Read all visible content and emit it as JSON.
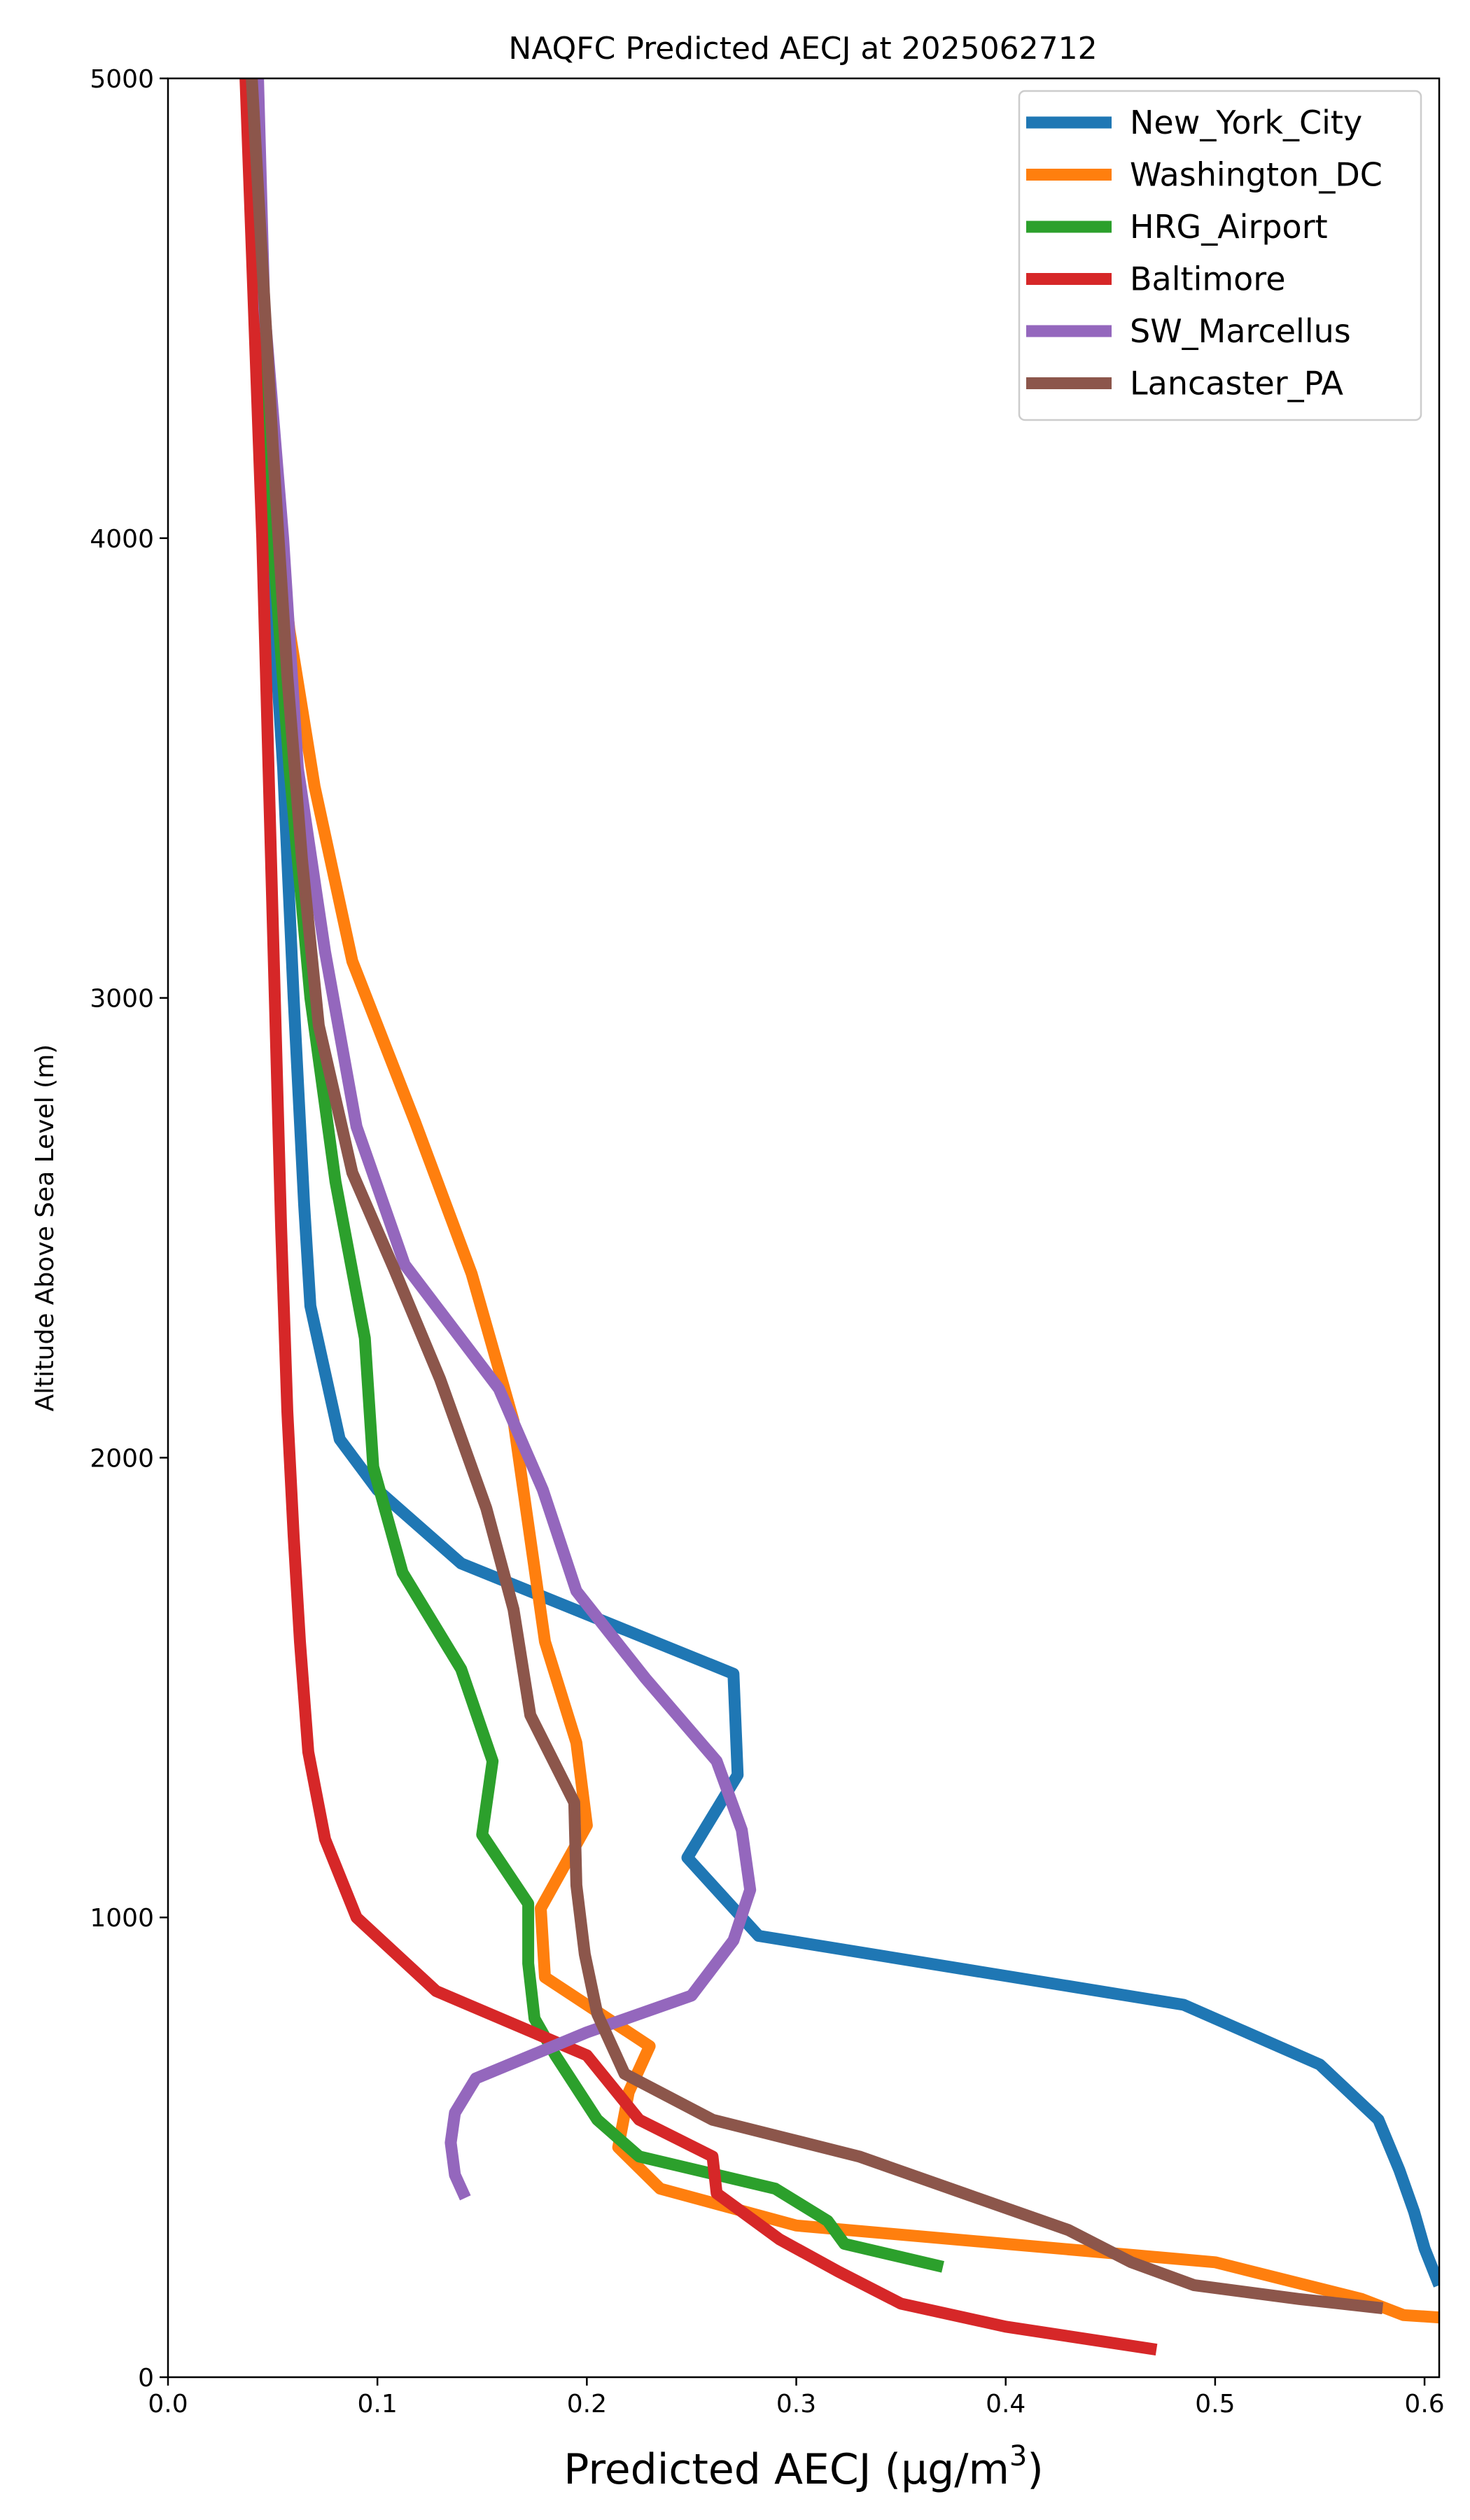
{
  "chart_data": {
    "type": "line",
    "title": "NAQFC Predicted AECJ at 2025062712",
    "xlabel": "Predicted AECJ (μg/m",
    "xlabel_sup": "3",
    "xlabel_end": ")",
    "ylabel": "Altitude Above Sea Level (m)",
    "xlim": [
      0.0,
      0.607
    ],
    "ylim": [
      0,
      5000
    ],
    "xticks": [
      0.0,
      0.1,
      0.2,
      0.3,
      0.4,
      0.5,
      0.6
    ],
    "xtick_labels": [
      "0.0",
      "0.1",
      "0.2",
      "0.3",
      "0.4",
      "0.5",
      "0.6"
    ],
    "yticks": [
      0,
      1000,
      2000,
      3000,
      4000,
      5000
    ],
    "ytick_labels": [
      "0",
      "1000",
      "2000",
      "3000",
      "4000",
      "5000"
    ],
    "grid": false,
    "legend_position": "top-right",
    "series": [
      {
        "name": "New_York_City",
        "color": "#1f77b4",
        "points": [
          [
            0.607,
            200
          ],
          [
            0.6,
            280
          ],
          [
            0.595,
            360
          ],
          [
            0.588,
            450
          ],
          [
            0.578,
            560
          ],
          [
            0.55,
            680
          ],
          [
            0.485,
            810
          ],
          [
            0.282,
            960
          ],
          [
            0.248,
            1130
          ],
          [
            0.272,
            1310
          ],
          [
            0.27,
            1530
          ],
          [
            0.14,
            1770
          ],
          [
            0.1,
            1930
          ],
          [
            0.082,
            2040
          ],
          [
            0.068,
            2330
          ],
          [
            0.065,
            2550
          ],
          [
            0.06,
            3000
          ],
          [
            0.055,
            3500
          ],
          [
            0.048,
            4000
          ],
          [
            0.043,
            4500
          ],
          [
            0.04,
            5000
          ]
        ]
      },
      {
        "name": "Washington_DC",
        "color": "#ff7f0e",
        "points": [
          [
            0.607,
            130
          ],
          [
            0.59,
            135
          ],
          [
            0.57,
            170
          ],
          [
            0.5,
            250
          ],
          [
            0.4,
            290
          ],
          [
            0.3,
            330
          ],
          [
            0.235,
            410
          ],
          [
            0.215,
            500
          ],
          [
            0.22,
            620
          ],
          [
            0.23,
            720
          ],
          [
            0.18,
            870
          ],
          [
            0.178,
            1020
          ],
          [
            0.2,
            1200
          ],
          [
            0.195,
            1380
          ],
          [
            0.18,
            1600
          ],
          [
            0.165,
            2080
          ],
          [
            0.145,
            2400
          ],
          [
            0.118,
            2730
          ],
          [
            0.088,
            3080
          ],
          [
            0.07,
            3460
          ],
          [
            0.058,
            3800
          ],
          [
            0.048,
            4200
          ],
          [
            0.043,
            4600
          ],
          [
            0.04,
            5000
          ]
        ]
      },
      {
        "name": "HRG_Airport",
        "color": "#2ca02c",
        "points": [
          [
            0.37,
            240
          ],
          [
            0.323,
            290
          ],
          [
            0.315,
            340
          ],
          [
            0.29,
            410
          ],
          [
            0.225,
            480
          ],
          [
            0.205,
            560
          ],
          [
            0.185,
            700
          ],
          [
            0.175,
            780
          ],
          [
            0.172,
            900
          ],
          [
            0.172,
            1030
          ],
          [
            0.15,
            1180
          ],
          [
            0.155,
            1340
          ],
          [
            0.14,
            1540
          ],
          [
            0.112,
            1750
          ],
          [
            0.098,
            1980
          ],
          [
            0.094,
            2260
          ],
          [
            0.08,
            2600
          ],
          [
            0.068,
            3000
          ],
          [
            0.058,
            3500
          ],
          [
            0.05,
            4000
          ],
          [
            0.045,
            4500
          ],
          [
            0.04,
            5000
          ]
        ]
      },
      {
        "name": "Baltimore",
        "color": "#d62728",
        "points": [
          [
            0.472,
            60
          ],
          [
            0.4,
            110
          ],
          [
            0.35,
            160
          ],
          [
            0.32,
            230
          ],
          [
            0.292,
            300
          ],
          [
            0.262,
            400
          ],
          [
            0.26,
            480
          ],
          [
            0.225,
            560
          ],
          [
            0.2,
            700
          ],
          [
            0.128,
            840
          ],
          [
            0.09,
            1000
          ],
          [
            0.075,
            1170
          ],
          [
            0.067,
            1360
          ],
          [
            0.063,
            1600
          ],
          [
            0.06,
            1830
          ],
          [
            0.057,
            2100
          ],
          [
            0.054,
            2500
          ],
          [
            0.051,
            3000
          ],
          [
            0.048,
            3500
          ],
          [
            0.045,
            4000
          ],
          [
            0.041,
            4500
          ],
          [
            0.037,
            5000
          ]
        ]
      },
      {
        "name": "SW_Marcellus",
        "color": "#9467bd",
        "points": [
          [
            0.142,
            390
          ],
          [
            0.137,
            440
          ],
          [
            0.135,
            510
          ],
          [
            0.137,
            575
          ],
          [
            0.147,
            650
          ],
          [
            0.2,
            750
          ],
          [
            0.25,
            830
          ],
          [
            0.27,
            950
          ],
          [
            0.278,
            1060
          ],
          [
            0.274,
            1190
          ],
          [
            0.262,
            1340
          ],
          [
            0.228,
            1520
          ],
          [
            0.195,
            1710
          ],
          [
            0.179,
            1930
          ],
          [
            0.158,
            2150
          ],
          [
            0.113,
            2420
          ],
          [
            0.09,
            2720
          ],
          [
            0.075,
            3100
          ],
          [
            0.062,
            3500
          ],
          [
            0.055,
            4000
          ],
          [
            0.046,
            4500
          ],
          [
            0.043,
            5000
          ]
        ]
      },
      {
        "name": "Lancaster_PA",
        "color": "#8c564b",
        "points": [
          [
            0.58,
            150
          ],
          [
            0.54,
            170
          ],
          [
            0.49,
            200
          ],
          [
            0.46,
            250
          ],
          [
            0.43,
            320
          ],
          [
            0.38,
            400
          ],
          [
            0.33,
            480
          ],
          [
            0.26,
            560
          ],
          [
            0.218,
            660
          ],
          [
            0.205,
            790
          ],
          [
            0.199,
            920
          ],
          [
            0.195,
            1070
          ],
          [
            0.194,
            1250
          ],
          [
            0.173,
            1440
          ],
          [
            0.165,
            1670
          ],
          [
            0.152,
            1890
          ],
          [
            0.13,
            2170
          ],
          [
            0.108,
            2410
          ],
          [
            0.088,
            2620
          ],
          [
            0.072,
            2940
          ],
          [
            0.064,
            3300
          ],
          [
            0.057,
            3700
          ],
          [
            0.05,
            4200
          ],
          [
            0.045,
            4600
          ],
          [
            0.04,
            5000
          ]
        ]
      }
    ]
  }
}
